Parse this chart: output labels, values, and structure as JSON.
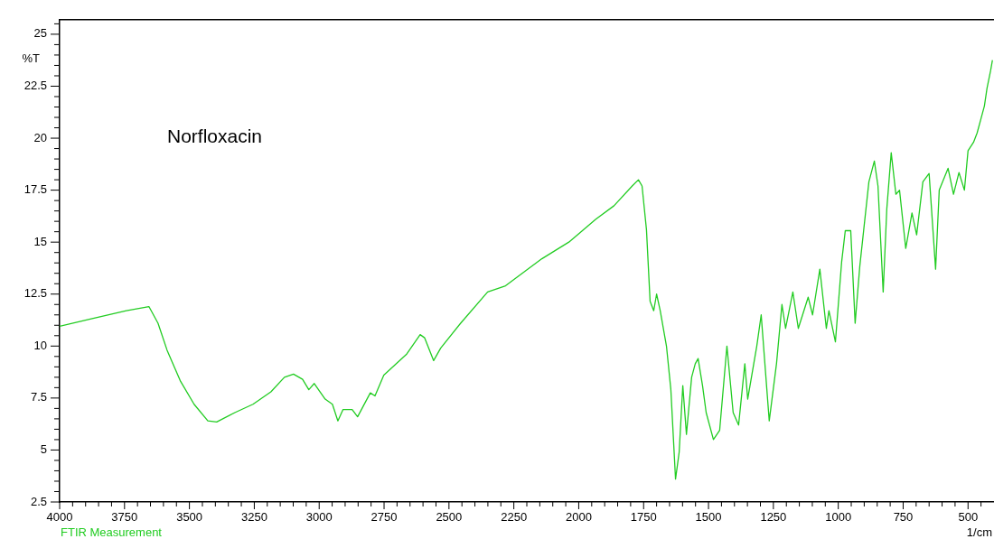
{
  "chart_data": {
    "type": "line",
    "title": "Norfloxacin",
    "ylabel": "%T",
    "xlabel": "1/cm",
    "annotations": [
      "FTIR Measurement"
    ],
    "x": [
      4000,
      3882,
      3743,
      3656,
      3621,
      3586,
      3534,
      3482,
      3429,
      3395,
      3325,
      3255,
      3186,
      3134,
      3099,
      3064,
      3040,
      3019,
      2977,
      2949,
      2928,
      2908,
      2873,
      2852,
      2803,
      2785,
      2751,
      2699,
      2664,
      2611,
      2594,
      2559,
      2532,
      2455,
      2351,
      2282,
      2212,
      2142,
      2038,
      1934,
      1864,
      1794,
      1770,
      1756,
      1739,
      1725,
      1711,
      1700,
      1686,
      1662,
      1645,
      1627,
      1613,
      1599,
      1585,
      1565,
      1551,
      1540,
      1523,
      1509,
      1481,
      1457,
      1429,
      1405,
      1384,
      1360,
      1349,
      1314,
      1297,
      1266,
      1238,
      1217,
      1203,
      1175,
      1154,
      1116,
      1099,
      1071,
      1046,
      1036,
      1011,
      987,
      973,
      952,
      935,
      917,
      882,
      861,
      847,
      827,
      813,
      796,
      778,
      764,
      740,
      716,
      698,
      674,
      650,
      625,
      611,
      577,
      556,
      535,
      514,
      500,
      479,
      465,
      451,
      437,
      427,
      413,
      406
    ],
    "series": [
      {
        "color": "#22cc22",
        "values": [
          10.95,
          11.3,
          11.7,
          11.9,
          11.1,
          9.8,
          8.3,
          7.2,
          6.4,
          6.35,
          6.8,
          7.2,
          7.8,
          8.5,
          8.65,
          8.4,
          7.9,
          8.2,
          7.45,
          7.2,
          6.4,
          6.95,
          6.95,
          6.6,
          7.75,
          7.6,
          8.6,
          9.2,
          9.6,
          10.55,
          10.4,
          9.3,
          9.9,
          11.1,
          12.6,
          12.9,
          13.55,
          14.2,
          15.0,
          16.1,
          16.75,
          17.7,
          18.0,
          17.7,
          15.6,
          12.15,
          11.7,
          12.5,
          11.7,
          10.0,
          7.9,
          3.6,
          4.9,
          8.1,
          5.75,
          8.5,
          9.15,
          9.4,
          8.1,
          6.8,
          5.5,
          5.95,
          10.0,
          6.8,
          6.2,
          9.15,
          7.45,
          10.0,
          11.5,
          6.4,
          9.15,
          12.0,
          10.85,
          12.6,
          10.85,
          12.35,
          11.5,
          13.7,
          10.85,
          11.7,
          10.2,
          14.05,
          15.55,
          15.55,
          11.1,
          13.85,
          17.9,
          18.9,
          17.7,
          12.6,
          16.6,
          19.3,
          17.3,
          17.5,
          14.7,
          16.4,
          15.35,
          17.9,
          18.3,
          13.7,
          17.5,
          18.55,
          17.3,
          18.35,
          17.5,
          19.4,
          19.8,
          20.25,
          20.9,
          21.55,
          22.4,
          23.25,
          23.75
        ]
      }
    ],
    "xlim": [
      4000,
      400
    ],
    "ylim": [
      2.5,
      25.7
    ],
    "xticks": [
      4000,
      {
        "value": 3950,
        "label": null
      },
      {
        "value": 3900,
        "label": null
      },
      {
        "value": 3850,
        "label": null
      },
      {
        "value": 3800,
        "label": null
      },
      3750,
      {
        "value": 3700,
        "label": null
      },
      {
        "value": 3650,
        "label": null
      },
      {
        "value": 3600,
        "label": null
      },
      {
        "value": 3550,
        "label": null
      },
      3500,
      {
        "value": 3450,
        "label": null
      },
      {
        "value": 3400,
        "label": null
      },
      {
        "value": 3350,
        "label": null
      },
      {
        "value": 3300,
        "label": null
      },
      3250,
      {
        "value": 3200,
        "label": null
      },
      {
        "value": 3150,
        "label": null
      },
      {
        "value": 3100,
        "label": null
      },
      {
        "value": 3050,
        "label": null
      },
      3000,
      {
        "value": 2950,
        "label": null
      },
      {
        "value": 2900,
        "label": null
      },
      {
        "value": 2850,
        "label": null
      },
      {
        "value": 2800,
        "label": null
      },
      2750,
      {
        "value": 2700,
        "label": null
      },
      {
        "value": 2650,
        "label": null
      },
      {
        "value": 2600,
        "label": null
      },
      {
        "value": 2550,
        "label": null
      },
      2500,
      {
        "value": 2450,
        "label": null
      },
      {
        "value": 2400,
        "label": null
      },
      {
        "value": 2350,
        "label": null
      },
      {
        "value": 2300,
        "label": null
      },
      2250,
      {
        "value": 2200,
        "label": null
      },
      {
        "value": 2150,
        "label": null
      },
      {
        "value": 2100,
        "label": null
      },
      {
        "value": 2050,
        "label": null
      },
      2000,
      {
        "value": 1950,
        "label": null
      },
      {
        "value": 1900,
        "label": null
      },
      {
        "value": 1850,
        "label": null
      },
      {
        "value": 1800,
        "label": null
      },
      1750,
      {
        "value": 1700,
        "label": null
      },
      {
        "value": 1650,
        "label": null
      },
      {
        "value": 1600,
        "label": null
      },
      {
        "value": 1550,
        "label": null
      },
      1500,
      {
        "value": 1450,
        "label": null
      },
      {
        "value": 1400,
        "label": null
      },
      {
        "value": 1350,
        "label": null
      },
      {
        "value": 1300,
        "label": null
      },
      1250,
      {
        "value": 1200,
        "label": null
      },
      {
        "value": 1150,
        "label": null
      },
      {
        "value": 1100,
        "label": null
      },
      {
        "value": 1050,
        "label": null
      },
      1000,
      {
        "value": 950,
        "label": null
      },
      {
        "value": 900,
        "label": null
      },
      {
        "value": 850,
        "label": null
      },
      {
        "value": 800,
        "label": null
      },
      750,
      {
        "value": 700,
        "label": null
      },
      {
        "value": 650,
        "label": null
      },
      {
        "value": 600,
        "label": null
      },
      {
        "value": 550,
        "label": null
      },
      500,
      {
        "value": 450,
        "label": null
      }
    ],
    "yticks": [
      2.5,
      {
        "value": 3,
        "label": null
      },
      {
        "value": 3.5,
        "label": null
      },
      {
        "value": 4,
        "label": null
      },
      {
        "value": 4.5,
        "label": null
      },
      5,
      {
        "value": 5.5,
        "label": null
      },
      {
        "value": 6,
        "label": null
      },
      {
        "value": 6.5,
        "label": null
      },
      {
        "value": 7,
        "label": null
      },
      7.5,
      {
        "value": 8,
        "label": null
      },
      {
        "value": 8.5,
        "label": null
      },
      {
        "value": 9,
        "label": null
      },
      {
        "value": 9.5,
        "label": null
      },
      10,
      {
        "value": 10.5,
        "label": null
      },
      {
        "value": 11,
        "label": null
      },
      {
        "value": 11.5,
        "label": null
      },
      {
        "value": 12,
        "label": null
      },
      12.5,
      {
        "value": 13,
        "label": null
      },
      {
        "value": 13.5,
        "label": null
      },
      {
        "value": 14,
        "label": null
      },
      {
        "value": 14.5,
        "label": null
      },
      15,
      {
        "value": 15.5,
        "label": null
      },
      {
        "value": 16,
        "label": null
      },
      {
        "value": 16.5,
        "label": null
      },
      {
        "value": 17,
        "label": null
      },
      17.5,
      {
        "value": 18,
        "label": null
      },
      {
        "value": 18.5,
        "label": null
      },
      {
        "value": 19,
        "label": null
      },
      {
        "value": 19.5,
        "label": null
      },
      20,
      {
        "value": 20.5,
        "label": null
      },
      {
        "value": 21,
        "label": null
      },
      {
        "value": 21.5,
        "label": null
      },
      {
        "value": 22,
        "label": null
      },
      22.5,
      {
        "value": 23,
        "label": null
      },
      {
        "value": 23.5,
        "label": null
      },
      {
        "value": 24,
        "label": null
      },
      {
        "value": 24.5,
        "label": null
      },
      25,
      {
        "value": 25.5,
        "label": null
      }
    ]
  }
}
